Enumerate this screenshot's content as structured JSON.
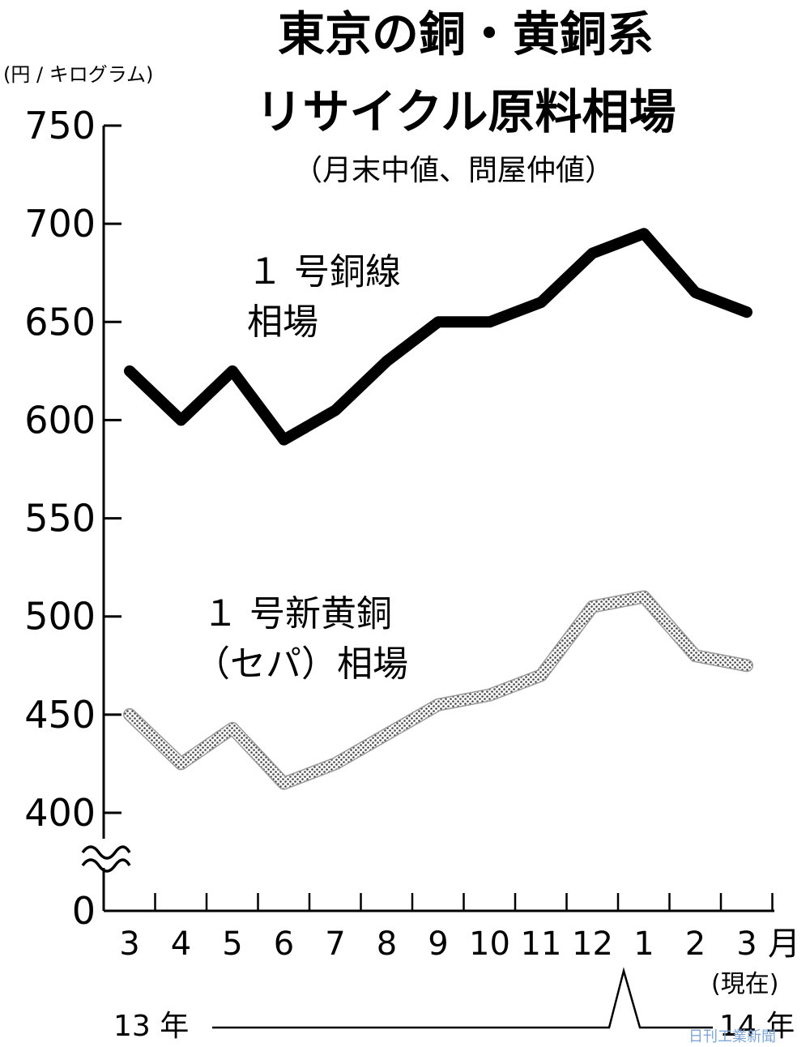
{
  "chart_data": {
    "type": "line",
    "title_line1": "東京の銅・黄銅系",
    "title_line2": "リサイクル原料相場",
    "subtitle": "（月末中値、問屋仲値）",
    "ylabel": "(円 / キログラム)",
    "ylim": [
      400,
      750
    ],
    "y_ticks": [
      "750",
      "700",
      "650",
      "600",
      "550",
      "500",
      "450",
      "400",
      "0"
    ],
    "y_tick_values": [
      750,
      700,
      650,
      600,
      550,
      500,
      450,
      400,
      0
    ],
    "axis_break": true,
    "categories": [
      "3",
      "4",
      "5",
      "6",
      "7",
      "8",
      "9",
      "10",
      "11",
      "12",
      "1",
      "2",
      "3"
    ],
    "x_unit": "月",
    "current_marker": "(現在)",
    "years": {
      "start": "13 年",
      "end": "14 年"
    },
    "series": [
      {
        "name_line1": "１ 号銅線",
        "name_line2": "相場",
        "style": "solid-black",
        "values": [
          625,
          600,
          625,
          590,
          605,
          630,
          650,
          650,
          660,
          685,
          695,
          665,
          655
        ]
      },
      {
        "name_line1": "１ 号新黄銅",
        "name_line2": "（セパ）相場",
        "style": "dotted-gray",
        "values": [
          450,
          425,
          443,
          415,
          425,
          440,
          455,
          460,
          470,
          505,
          510,
          480,
          475
        ]
      }
    ],
    "grid": false
  },
  "colors": {
    "series1": "#000000",
    "series2_dot": "#555555",
    "watermark": "#7fa6d6"
  },
  "watermark": "日刊工業新聞"
}
